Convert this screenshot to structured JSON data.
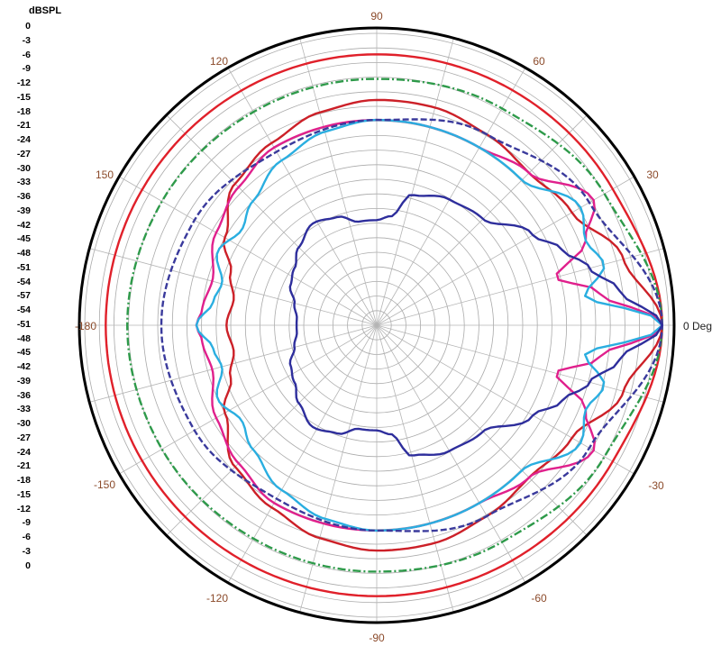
{
  "chart_data": {
    "type": "polar",
    "r_unit_label": "dBSPL",
    "r_range": [
      -57,
      0
    ],
    "r_step_db": 3,
    "r_tick_labels": [
      "0",
      "-3",
      "-6",
      "-9",
      "-12",
      "-15",
      "-18",
      "-21",
      "-24",
      "-27",
      "-30",
      "-33",
      "-36",
      "-39",
      "-42",
      "-45",
      "-48",
      "-51",
      "-54",
      "-57",
      "-54",
      "-51",
      "-48",
      "-45",
      "-42",
      "-39",
      "-36",
      "-33",
      "-30",
      "-27",
      "-24",
      "-21",
      "-18",
      "-15",
      "-12",
      "-9",
      "-6",
      "-3",
      "0"
    ],
    "angle_tick_labels": [
      {
        "deg": 0,
        "label": "0 Deg"
      },
      {
        "deg": 30,
        "label": "30"
      },
      {
        "deg": 60,
        "label": "60"
      },
      {
        "deg": 90,
        "label": "90"
      },
      {
        "deg": 120,
        "label": "120"
      },
      {
        "deg": 150,
        "label": "150"
      },
      {
        "deg": 180,
        "label": "-180"
      },
      {
        "deg": 210,
        "label": "-150"
      },
      {
        "deg": 240,
        "label": "-120"
      },
      {
        "deg": 270,
        "label": "-90"
      },
      {
        "deg": 300,
        "label": "-60"
      },
      {
        "deg": 330,
        "label": "-30"
      }
    ],
    "grid": true,
    "symmetric": true,
    "series": [
      {
        "color": "#e0202a",
        "style": "solid",
        "points": [
          [
            0,
            0
          ],
          [
            30,
            -2.6
          ],
          [
            60,
            -2.8
          ],
          [
            90,
            -2.9
          ],
          [
            120,
            -2.9
          ],
          [
            150,
            -2.9
          ],
          [
            180,
            -2.9
          ]
        ]
      },
      {
        "color": "#2e9a4a",
        "style": "dashdot",
        "points": [
          [
            0,
            0
          ],
          [
            30,
            -4.5
          ],
          [
            60,
            -7
          ],
          [
            90,
            -7.8
          ],
          [
            120,
            -7.8
          ],
          [
            150,
            -7.5
          ],
          [
            180,
            -7.2
          ]
        ]
      },
      {
        "color": "#cc2028",
        "style": "solid",
        "points": [
          [
            0,
            0
          ],
          [
            15,
            -6
          ],
          [
            30,
            -12
          ],
          [
            45,
            -14
          ],
          [
            60,
            -13
          ],
          [
            75,
            -12
          ],
          [
            90,
            -12
          ],
          [
            105,
            -13
          ],
          [
            120,
            -15
          ],
          [
            135,
            -17
          ],
          [
            150,
            -22
          ],
          [
            160,
            -26
          ],
          [
            170,
            -28
          ],
          [
            180,
            -27
          ]
        ]
      },
      {
        "color": "#e0208c",
        "style": "solid",
        "points": [
          [
            0,
            0
          ],
          [
            8,
            -12
          ],
          [
            15,
            -20
          ],
          [
            22,
            -12
          ],
          [
            30,
            -7
          ],
          [
            45,
            -14
          ],
          [
            60,
            -16
          ],
          [
            75,
            -16
          ],
          [
            90,
            -16
          ],
          [
            105,
            -16
          ],
          [
            120,
            -16
          ],
          [
            135,
            -18
          ],
          [
            150,
            -20
          ],
          [
            165,
            -23
          ],
          [
            175,
            -22
          ],
          [
            180,
            -21
          ]
        ]
      },
      {
        "color": "#2aaee0",
        "style": "solid",
        "points": [
          [
            0,
            0
          ],
          [
            8,
            -15
          ],
          [
            15,
            -10
          ],
          [
            22,
            -12
          ],
          [
            30,
            -10
          ],
          [
            45,
            -16
          ],
          [
            60,
            -16
          ],
          [
            75,
            -16
          ],
          [
            90,
            -16
          ],
          [
            105,
            -17
          ],
          [
            120,
            -19
          ],
          [
            135,
            -22
          ],
          [
            145,
            -24
          ],
          [
            155,
            -22
          ],
          [
            165,
            -25
          ],
          [
            172,
            -24
          ],
          [
            180,
            -21
          ]
        ]
      },
      {
        "color": "#3a3a9c",
        "style": "dashed",
        "points": [
          [
            0,
            0
          ],
          [
            30,
            -8
          ],
          [
            60,
            -13
          ],
          [
            90,
            -16
          ],
          [
            120,
            -17
          ],
          [
            150,
            -15
          ],
          [
            180,
            -14
          ]
        ]
      },
      {
        "color": "#2e2e9c",
        "style": "solid",
        "points": [
          [
            0,
            0
          ],
          [
            8,
            -8
          ],
          [
            15,
            -13
          ],
          [
            22,
            -17
          ],
          [
            30,
            -21
          ],
          [
            45,
            -27
          ],
          [
            60,
            -28
          ],
          [
            75,
            -30
          ],
          [
            82,
            -35
          ],
          [
            90,
            -36
          ],
          [
            100,
            -36
          ],
          [
            110,
            -34
          ],
          [
            122,
            -33
          ],
          [
            135,
            -35
          ],
          [
            145,
            -37
          ],
          [
            155,
            -38
          ],
          [
            165,
            -40
          ],
          [
            175,
            -41
          ],
          [
            180,
            -41
          ]
        ]
      }
    ]
  }
}
